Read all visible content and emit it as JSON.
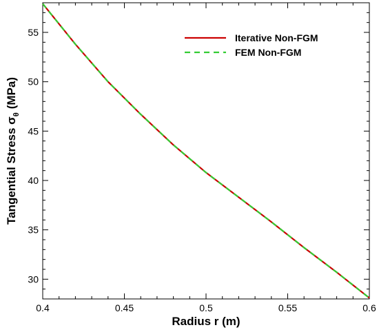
{
  "chart_data": {
    "type": "line",
    "title": "",
    "xlabel": "Radius r (m)",
    "ylabel_main": "Tangential Stress σ",
    "ylabel_sub": "θ",
    "ylabel_unit": "(MPa)",
    "xlim": [
      0.4,
      0.6
    ],
    "ylim": [
      28,
      58
    ],
    "xticks": [
      0.4,
      0.45,
      0.5,
      0.55,
      0.6
    ],
    "xtick_labels": [
      "0.4",
      "0.45",
      "0.5",
      "0.55",
      "0.6"
    ],
    "yticks": [
      30,
      35,
      40,
      45,
      50,
      55
    ],
    "ytick_labels": [
      "30",
      "35",
      "40",
      "45",
      "50",
      "55"
    ],
    "grid": false,
    "legend_position": "top-right",
    "series": [
      {
        "name": "Iterative Non-FGM",
        "color": "#cc0000",
        "style": "solid",
        "x": [
          0.4,
          0.42,
          0.44,
          0.46,
          0.48,
          0.5,
          0.52,
          0.54,
          0.56,
          0.58,
          0.6
        ],
        "y": [
          57.9,
          53.8,
          50.0,
          46.7,
          43.6,
          40.8,
          38.3,
          35.8,
          33.2,
          30.7,
          28.1
        ]
      },
      {
        "name": "FEM Non-FGM",
        "color": "#33cc33",
        "style": "dashed",
        "x": [
          0.4,
          0.42,
          0.44,
          0.46,
          0.48,
          0.5,
          0.52,
          0.54,
          0.56,
          0.58,
          0.6
        ],
        "y": [
          57.9,
          53.8,
          50.0,
          46.7,
          43.6,
          40.8,
          38.3,
          35.8,
          33.2,
          30.7,
          28.1
        ]
      }
    ]
  }
}
